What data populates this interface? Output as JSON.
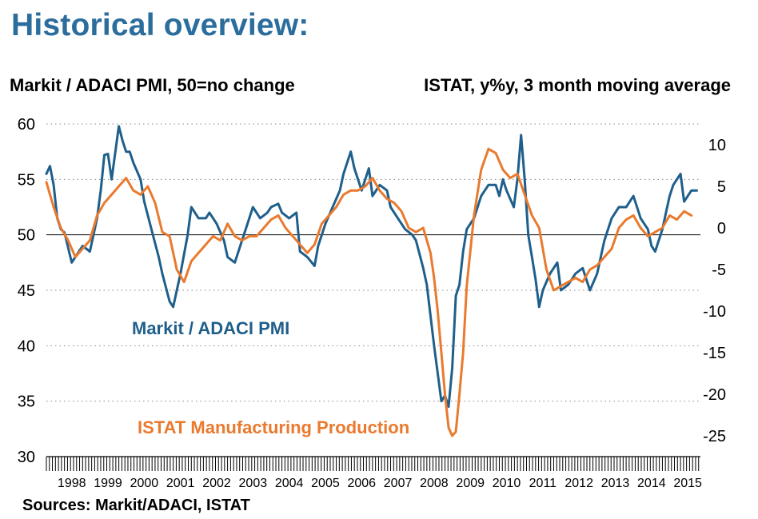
{
  "header": {
    "title": "Historical overview:",
    "left_axis_title": "Markit / ADACI PMI, 50=no change",
    "right_axis_title": "ISTAT, y%y, 3 month moving average"
  },
  "footer": {
    "source": "Sources: Markit/ADACI, ISTAT"
  },
  "colors": {
    "title": "#2b6d9c",
    "pmi": "#1f5f8b",
    "production": "#e97a2e",
    "grid": "#888888"
  },
  "chart_data": {
    "type": "line",
    "x_label_type": "year",
    "x_ticks": [
      "1998",
      "1999",
      "2000",
      "2001",
      "2002",
      "2003",
      "2004",
      "2005",
      "2006",
      "2007",
      "2008",
      "2009",
      "2010",
      "2011",
      "2012",
      "2013",
      "2014",
      "2015"
    ],
    "xlim": [
      1997.8,
      2015.85
    ],
    "left_axis": {
      "label": "Markit / ADACI PMI, 50=no change",
      "ylim": [
        30,
        60
      ],
      "ticks": [
        30,
        35,
        40,
        45,
        50,
        55,
        60
      ]
    },
    "right_axis": {
      "label": "ISTAT, y%y, 3 month moving average",
      "ylim": [
        -27.5,
        12.5
      ],
      "ticks": [
        -25,
        -20,
        -15,
        -10,
        -5,
        0,
        5,
        10
      ]
    },
    "grid": "horizontal dotted",
    "series": [
      {
        "name": "Markit / ADACI PMI",
        "axis": "left",
        "x": [
          1997.8,
          1997.9,
          1998.0,
          1998.1,
          1998.2,
          1998.3,
          1998.5,
          1998.7,
          1998.8,
          1999.0,
          1999.2,
          1999.3,
          1999.4,
          1999.5,
          1999.6,
          1999.8,
          1999.9,
          2000.0,
          2000.1,
          2000.2,
          2000.4,
          2000.5,
          2000.7,
          2000.9,
          2001.0,
          2001.2,
          2001.3,
          2001.5,
          2001.7,
          2001.8,
          2002.0,
          2002.2,
          2002.3,
          2002.5,
          2002.7,
          2002.8,
          2003.0,
          2003.2,
          2003.3,
          2003.5,
          2003.7,
          2003.9,
          2004.0,
          2004.2,
          2004.3,
          2004.5,
          2004.7,
          2004.8,
          2005.0,
          2005.2,
          2005.3,
          2005.5,
          2005.7,
          2005.9,
          2006.0,
          2006.2,
          2006.3,
          2006.5,
          2006.7,
          2006.8,
          2007.0,
          2007.2,
          2007.3,
          2007.5,
          2007.7,
          2007.9,
          2008.0,
          2008.2,
          2008.3,
          2008.5,
          2008.7,
          2008.8,
          2008.9,
          2009.0,
          2009.1,
          2009.2,
          2009.3,
          2009.4,
          2009.6,
          2009.8,
          2010.0,
          2010.2,
          2010.3,
          2010.4,
          2010.5,
          2010.7,
          2010.8,
          2010.9,
          2011.0,
          2011.1,
          2011.2,
          2011.3,
          2011.4,
          2011.5,
          2011.7,
          2011.9,
          2012.0,
          2012.2,
          2012.4,
          2012.6,
          2012.8,
          2013.0,
          2013.2,
          2013.4,
          2013.6,
          2013.8,
          2014.0,
          2014.2,
          2014.4,
          2014.5,
          2014.6,
          2014.8,
          2014.9,
          2015.0,
          2015.1,
          2015.3,
          2015.4,
          2015.6,
          2015.75
        ],
        "values": [
          55.5,
          56.2,
          54.5,
          51.5,
          50.5,
          50.2,
          47.5,
          48.5,
          49.0,
          48.5,
          51.5,
          54.0,
          57.2,
          57.3,
          55.0,
          59.8,
          58.5,
          57.5,
          57.5,
          56.5,
          55.0,
          53.0,
          50.5,
          48.0,
          46.5,
          44.0,
          43.5,
          46.5,
          50.0,
          52.5,
          51.5,
          51.5,
          52.0,
          51.0,
          49.5,
          48.0,
          47.5,
          49.5,
          50.5,
          52.5,
          51.5,
          52.0,
          52.5,
          52.8,
          52.0,
          51.5,
          52.0,
          48.5,
          48.0,
          47.2,
          49.0,
          51.0,
          52.5,
          54.0,
          55.5,
          57.5,
          56.0,
          54.0,
          56.0,
          53.5,
          54.5,
          54.0,
          52.5,
          51.5,
          50.5,
          50.0,
          49.5,
          47.0,
          45.5,
          40.0,
          35.0,
          35.5,
          34.5,
          38.0,
          44.5,
          45.5,
          48.5,
          50.5,
          51.5,
          53.5,
          54.5,
          54.5,
          53.5,
          55.0,
          54.0,
          52.5,
          55.0,
          59.0,
          55.0,
          50.0,
          48.0,
          46.0,
          43.5,
          45.0,
          46.5,
          47.5,
          45.0,
          45.5,
          46.5,
          47.0,
          45.0,
          46.5,
          49.5,
          51.5,
          52.5,
          52.5,
          53.5,
          51.5,
          50.5,
          49.0,
          48.5,
          50.5,
          52.0,
          53.5,
          54.5,
          55.5,
          53.0,
          54.0,
          54.0
        ]
      },
      {
        "name": "ISTAT Manufacturing Production",
        "axis": "right",
        "x": [
          1997.8,
          1998.0,
          1998.2,
          1998.4,
          1998.6,
          1998.8,
          1999.0,
          1999.2,
          1999.4,
          1999.6,
          1999.8,
          2000.0,
          2000.2,
          2000.4,
          2000.6,
          2000.8,
          2001.0,
          2001.2,
          2001.4,
          2001.6,
          2001.8,
          2002.0,
          2002.2,
          2002.4,
          2002.6,
          2002.8,
          2003.0,
          2003.2,
          2003.4,
          2003.6,
          2003.8,
          2004.0,
          2004.2,
          2004.4,
          2004.6,
          2004.8,
          2005.0,
          2005.2,
          2005.4,
          2005.6,
          2005.8,
          2006.0,
          2006.2,
          2006.4,
          2006.6,
          2006.8,
          2007.0,
          2007.2,
          2007.4,
          2007.6,
          2007.8,
          2008.0,
          2008.2,
          2008.4,
          2008.5,
          2008.6,
          2008.7,
          2008.8,
          2008.9,
          2009.0,
          2009.1,
          2009.2,
          2009.3,
          2009.4,
          2009.6,
          2009.8,
          2010.0,
          2010.2,
          2010.4,
          2010.6,
          2010.8,
          2011.0,
          2011.2,
          2011.4,
          2011.6,
          2011.8,
          2012.0,
          2012.2,
          2012.4,
          2012.6,
          2012.8,
          2013.0,
          2013.2,
          2013.4,
          2013.6,
          2013.8,
          2014.0,
          2014.2,
          2014.4,
          2014.6,
          2014.8,
          2015.0,
          2015.2,
          2015.4,
          2015.6
        ],
        "values": [
          5.5,
          2.5,
          0.0,
          -1.5,
          -3.5,
          -2.5,
          -1.5,
          1.5,
          3.0,
          4.0,
          5.0,
          6.0,
          4.5,
          4.0,
          5.0,
          3.0,
          -0.5,
          -1.0,
          -5.0,
          -6.5,
          -4.0,
          -3.0,
          -2.0,
          -1.0,
          -1.5,
          0.5,
          -1.0,
          -1.5,
          -1.0,
          -1.0,
          0.0,
          1.0,
          1.5,
          0.0,
          -1.0,
          -2.0,
          -3.0,
          -2.0,
          0.5,
          1.5,
          2.5,
          4.0,
          4.5,
          4.5,
          5.0,
          6.0,
          4.5,
          3.5,
          3.0,
          2.0,
          0.0,
          -0.5,
          0.0,
          -3.0,
          -6.0,
          -10.0,
          -15.0,
          -20.0,
          -24.0,
          -25.0,
          -24.5,
          -20.0,
          -15.0,
          -7.0,
          1.5,
          7.0,
          9.5,
          9.0,
          7.0,
          6.0,
          6.5,
          4.0,
          1.5,
          0.0,
          -5.0,
          -7.5,
          -7.0,
          -6.5,
          -6.0,
          -6.5,
          -5.0,
          -4.5,
          -3.5,
          -2.5,
          0.0,
          1.0,
          1.5,
          0.0,
          -1.0,
          -0.5,
          0.0,
          1.5,
          1.0,
          2.0,
          1.5
        ]
      }
    ]
  }
}
